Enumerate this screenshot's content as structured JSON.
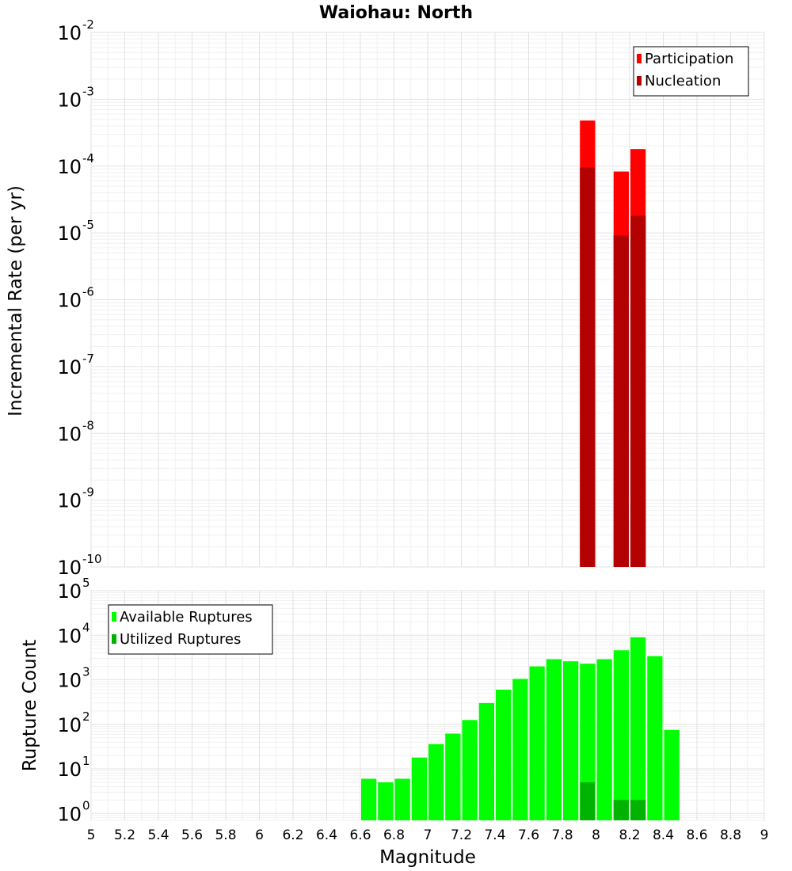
{
  "chart_data": [
    {
      "type": "bar",
      "title": "Waiohau: North",
      "xlabel": "",
      "ylabel": "Incremental Rate (per yr)",
      "yscale": "log",
      "ylim": [
        1e-10,
        0.01
      ],
      "xlim": [
        5,
        9
      ],
      "bin_width": 0.1,
      "grid": true,
      "legend_position": "top-right",
      "ytick_labels": [
        {
          "base": "10",
          "exp": "-10"
        },
        {
          "base": "10",
          "exp": "-9"
        },
        {
          "base": "10",
          "exp": "-8"
        },
        {
          "base": "10",
          "exp": "-7"
        },
        {
          "base": "10",
          "exp": "-6"
        },
        {
          "base": "10",
          "exp": "-5"
        },
        {
          "base": "10",
          "exp": "-4"
        },
        {
          "base": "10",
          "exp": "-3"
        },
        {
          "base": "10",
          "exp": "-2"
        }
      ],
      "series": [
        {
          "name": "Participation",
          "color": "#ff0000",
          "x": [
            7.95,
            8.15,
            8.25
          ],
          "values": [
            0.00048,
            8.3e-05,
            0.00018
          ]
        },
        {
          "name": "Nucleation",
          "color": "#b30000",
          "x": [
            7.95,
            8.15,
            8.25
          ],
          "values": [
            9.5e-05,
            9.2e-06,
            1.8e-05
          ]
        }
      ]
    },
    {
      "type": "bar",
      "title": "",
      "xlabel": "Magnitude",
      "ylabel": "Rupture Count",
      "yscale": "log",
      "ylim": [
        0.7,
        100000
      ],
      "xlim": [
        5,
        9
      ],
      "bin_width": 0.1,
      "grid": true,
      "legend_position": "top-left",
      "xtick_labels": [
        "5",
        "5.2",
        "5.4",
        "5.6",
        "5.8",
        "6",
        "6.2",
        "6.4",
        "6.6",
        "6.8",
        "7",
        "7.2",
        "7.4",
        "7.6",
        "7.8",
        "8",
        "8.2",
        "8.4",
        "8.6",
        "8.8",
        "9"
      ],
      "ytick_labels": [
        {
          "base": "10",
          "exp": "0"
        },
        {
          "base": "10",
          "exp": "1"
        },
        {
          "base": "10",
          "exp": "2"
        },
        {
          "base": "10",
          "exp": "3"
        },
        {
          "base": "10",
          "exp": "4"
        },
        {
          "base": "10",
          "exp": "5"
        }
      ],
      "series": [
        {
          "name": "Available Ruptures",
          "color": "#00ff00",
          "x": [
            6.65,
            6.75,
            6.85,
            6.95,
            7.05,
            7.15,
            7.25,
            7.35,
            7.45,
            7.55,
            7.65,
            7.75,
            7.85,
            7.95,
            8.05,
            8.15,
            8.25,
            8.35,
            8.45
          ],
          "values": [
            6,
            5,
            6,
            18,
            36,
            62,
            125,
            300,
            600,
            1050,
            2000,
            2900,
            2600,
            2300,
            2900,
            4600,
            9000,
            3400,
            75
          ]
        },
        {
          "name": "Utilized Ruptures",
          "color": "#00b300",
          "x": [
            7.95,
            8.15,
            8.25
          ],
          "values": [
            5,
            2,
            2
          ]
        }
      ]
    }
  ]
}
